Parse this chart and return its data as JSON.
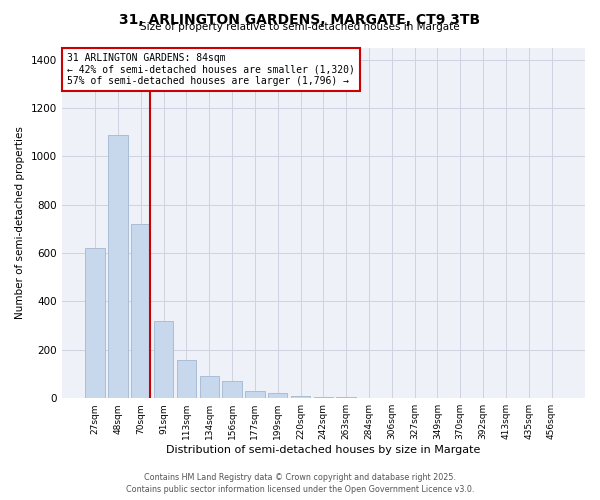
{
  "title_line1": "31, ARLINGTON GARDENS, MARGATE, CT9 3TB",
  "title_line2": "Size of property relative to semi-detached houses in Margate",
  "xlabel": "Distribution of semi-detached houses by size in Margate",
  "ylabel": "Number of semi-detached properties",
  "bar_color": "#c8d8ec",
  "bar_edge_color": "#aabdd8",
  "categories": [
    "27sqm",
    "48sqm",
    "70sqm",
    "91sqm",
    "113sqm",
    "134sqm",
    "156sqm",
    "177sqm",
    "199sqm",
    "220sqm",
    "242sqm",
    "263sqm",
    "284sqm",
    "306sqm",
    "327sqm",
    "349sqm",
    "370sqm",
    "392sqm",
    "413sqm",
    "435sqm",
    "456sqm"
  ],
  "values": [
    620,
    1090,
    720,
    320,
    160,
    90,
    70,
    30,
    20,
    10,
    5,
    3,
    1,
    0,
    0,
    0,
    0,
    0,
    0,
    0,
    0
  ],
  "vline_color": "#cc0000",
  "annotation_box_color": "#cc0000",
  "annotation_title": "31 ARLINGTON GARDENS: 84sqm",
  "annotation_line1": "← 42% of semi-detached houses are smaller (1,320)",
  "annotation_line2": "57% of semi-detached houses are larger (1,796) →",
  "footer_line1": "Contains HM Land Registry data © Crown copyright and database right 2025.",
  "footer_line2": "Contains public sector information licensed under the Open Government Licence v3.0.",
  "bg_color": "#eef2f8",
  "grid_color": "#ccd4e0",
  "ylim": [
    0,
    1450
  ],
  "yticks": [
    0,
    200,
    400,
    600,
    800,
    1000,
    1200,
    1400
  ],
  "vline_x": 2.42
}
